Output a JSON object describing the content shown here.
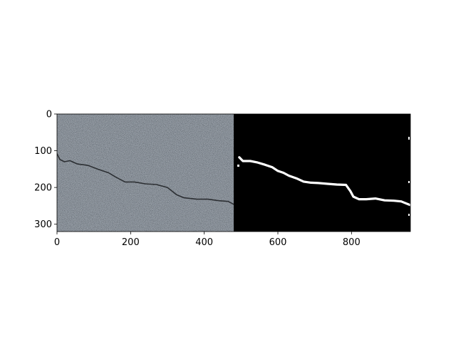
{
  "figure": {
    "x_axis": {
      "range": [
        0,
        960
      ],
      "ticks": [
        {
          "value": 0,
          "label": "0"
        },
        {
          "value": 200,
          "label": "200"
        },
        {
          "value": 400,
          "label": "400"
        },
        {
          "value": 600,
          "label": "600"
        },
        {
          "value": 800,
          "label": "800"
        }
      ]
    },
    "y_axis": {
      "range": [
        0,
        320
      ],
      "inverted": true,
      "ticks": [
        {
          "value": 0,
          "label": "0"
        },
        {
          "value": 100,
          "label": "100"
        },
        {
          "value": 200,
          "label": "200"
        },
        {
          "value": 300,
          "label": "300"
        }
      ]
    },
    "panels": [
      {
        "name": "asphalt-photo",
        "x_range": [
          0,
          480
        ],
        "colors": {
          "base": "#7e8791",
          "crack": "#2c2f33"
        }
      },
      {
        "name": "crack-mask",
        "x_range": [
          480,
          960
        ],
        "colors": {
          "background": "#000000",
          "mask": "#ffffff"
        }
      }
    ],
    "crack_path_image_coords": [
      [
        0,
        108
      ],
      [
        8,
        124
      ],
      [
        20,
        130
      ],
      [
        35,
        127
      ],
      [
        55,
        136
      ],
      [
        85,
        140
      ],
      [
        110,
        150
      ],
      [
        140,
        160
      ],
      [
        160,
        172
      ],
      [
        185,
        185
      ],
      [
        210,
        185
      ],
      [
        240,
        190
      ],
      [
        270,
        192
      ],
      [
        300,
        200
      ],
      [
        325,
        220
      ],
      [
        345,
        228
      ],
      [
        380,
        232
      ],
      [
        410,
        232
      ],
      [
        440,
        236
      ],
      [
        465,
        238
      ],
      [
        480,
        246
      ]
    ],
    "mask_path_image_coords": [
      [
        495,
        118
      ],
      [
        505,
        128
      ],
      [
        525,
        128
      ],
      [
        545,
        132
      ],
      [
        565,
        138
      ],
      [
        585,
        145
      ],
      [
        600,
        155
      ],
      [
        615,
        160
      ],
      [
        630,
        168
      ],
      [
        650,
        175
      ],
      [
        670,
        184
      ],
      [
        690,
        187
      ],
      [
        710,
        188
      ],
      [
        735,
        190
      ],
      [
        760,
        192
      ],
      [
        785,
        193
      ],
      [
        797,
        210
      ],
      [
        805,
        225
      ],
      [
        820,
        232
      ],
      [
        840,
        232
      ],
      [
        865,
        230
      ],
      [
        890,
        235
      ],
      [
        915,
        236
      ],
      [
        935,
        238
      ],
      [
        945,
        242
      ],
      [
        960,
        248
      ]
    ]
  }
}
